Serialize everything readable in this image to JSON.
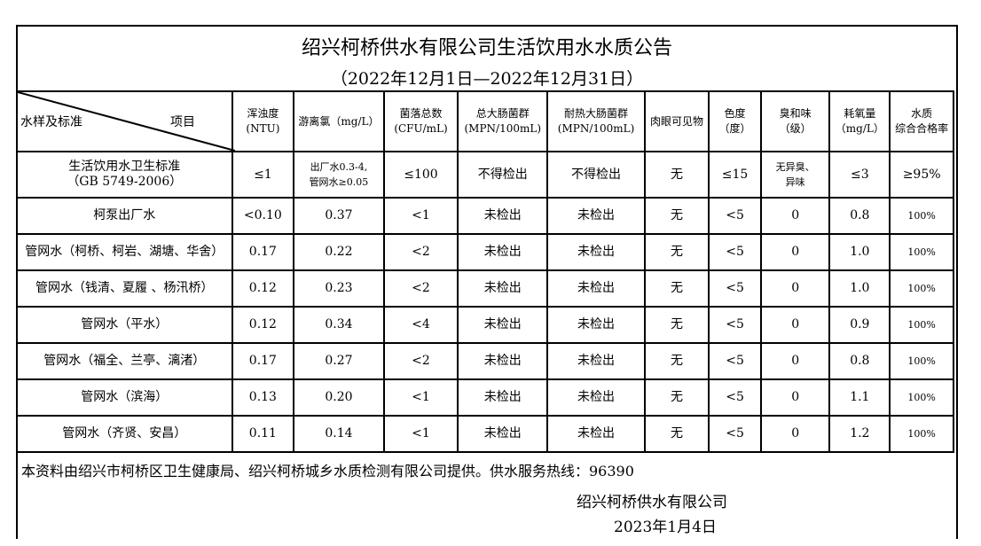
{
  "title": "绍兴柯桥供水有限公司生活饮用水水质公告",
  "period": "（2022年12月1日—2022年12月31日）",
  "header": {
    "corner_left": "水样及标准",
    "corner_right": "项目",
    "columns": [
      [
        "浑浊度",
        "(NTU)"
      ],
      [
        "游离氯（mg/L）",
        ""
      ],
      [
        "菌落总数",
        "(CFU/mL)"
      ],
      [
        "总大肠菌群",
        "(MPN/100mL)"
      ],
      [
        "耐热大肠菌群",
        "(MPN/100mL)"
      ],
      [
        "肉眼可见物",
        ""
      ],
      [
        "色度",
        "（度）"
      ],
      [
        "臭和味",
        "（级）"
      ],
      [
        "耗氧量",
        "（mg/L）"
      ],
      [
        "水质",
        "综合合格率"
      ]
    ]
  },
  "standard": {
    "name": [
      "生活饮用水卫生标准",
      "（GB 5749-2006）"
    ],
    "values": [
      [
        "≤1"
      ],
      [
        "出厂水0.3-4,",
        "管网水≥0.05"
      ],
      [
        "≤100"
      ],
      [
        "不得检出"
      ],
      [
        "不得检出"
      ],
      [
        "无"
      ],
      [
        "≤15"
      ],
      [
        "无异臭、",
        "异味"
      ],
      [
        "≤3"
      ],
      [
        "≥95%"
      ]
    ]
  },
  "rows": [
    {
      "name": "柯泵出厂水",
      "values": [
        "<0.10",
        "0.37",
        "<1",
        "未检出",
        "未检出",
        "无",
        "<5",
        "0",
        "0.8",
        "100%"
      ]
    },
    {
      "name": "管网水（柯桥、柯岩、湖塘、华舍）",
      "values": [
        "0.17",
        "0.22",
        "<2",
        "未检出",
        "未检出",
        "无",
        "<5",
        "0",
        "1.0",
        "100%"
      ]
    },
    {
      "name": "管网水（钱清、夏履 、杨汛桥）",
      "values": [
        "0.12",
        "0.23",
        "<2",
        "未检出",
        "未检出",
        "无",
        "<5",
        "0",
        "1.0",
        "100%"
      ]
    },
    {
      "name": "管网水（平水）",
      "values": [
        "0.12",
        "0.34",
        "<4",
        "未检出",
        "未检出",
        "无",
        "<5",
        "0",
        "0.9",
        "100%"
      ]
    },
    {
      "name": "管网水（福全、兰亭、漓渚）",
      "values": [
        "0.17",
        "0.27",
        "<2",
        "未检出",
        "未检出",
        "无",
        "<5",
        "0",
        "0.8",
        "100%"
      ]
    },
    {
      "name": "管网水（滨海）",
      "values": [
        "0.13",
        "0.20",
        "<1",
        "未检出",
        "未检出",
        "无",
        "<5",
        "0",
        "1.1",
        "100%"
      ]
    },
    {
      "name": "管网水（齐贤、安昌）",
      "values": [
        "0.11",
        "0.14",
        "<1",
        "未检出",
        "未检出",
        "无",
        "<5",
        "0",
        "1.2",
        "100%"
      ]
    }
  ],
  "footer": {
    "note": "本资料由绍兴市柯桥区卫生健康局、绍兴柯桥城乡水质检测有限公司提供。供水服务热线：96390",
    "company": "绍兴柯桥供水有限公司",
    "date": "2023年1月4日"
  }
}
